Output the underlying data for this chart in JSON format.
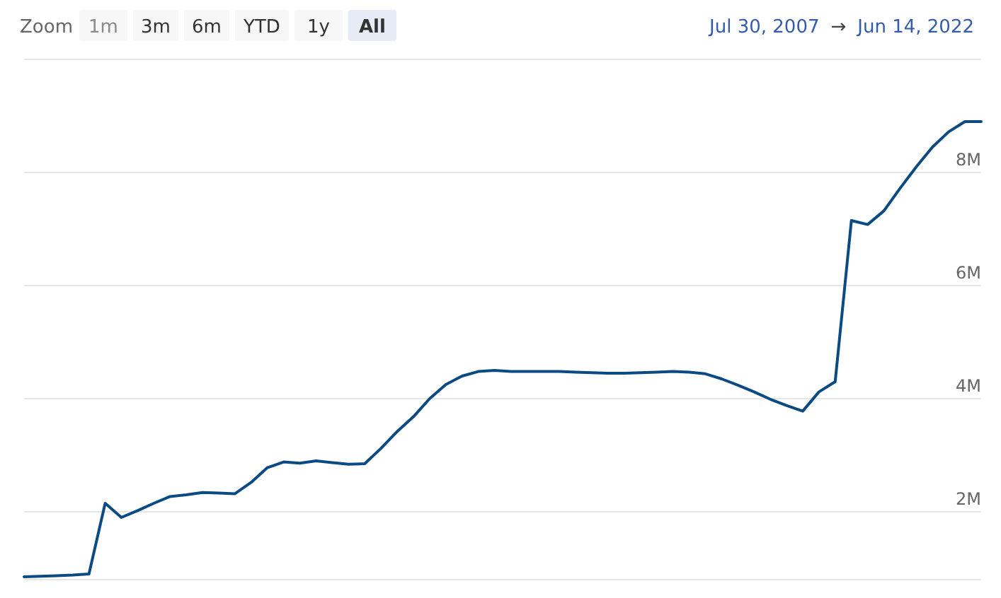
{
  "chart_data": {
    "type": "line",
    "categories": [
      null,
      null,
      null,
      null,
      null,
      null,
      null,
      null,
      null,
      null,
      null,
      null,
      null,
      null,
      null,
      null,
      null,
      null,
      null,
      null,
      null,
      null,
      null,
      null,
      null,
      null,
      null,
      null,
      null,
      null,
      null,
      null,
      null,
      null,
      null,
      null,
      null,
      null,
      null,
      null,
      null,
      null,
      null,
      null,
      null,
      null,
      null,
      null,
      null,
      null,
      null,
      null,
      null,
      null,
      null,
      null,
      null,
      null,
      null,
      null
    ],
    "series": [
      {
        "color": "#0b4a82",
        "values": [
          0.85,
          0.86,
          0.87,
          0.88,
          0.9,
          2.15,
          1.9,
          2.02,
          2.15,
          2.27,
          2.3,
          2.34,
          2.33,
          2.32,
          2.52,
          2.78,
          2.88,
          2.86,
          2.9,
          2.87,
          2.84,
          2.85,
          3.12,
          3.42,
          3.68,
          4.0,
          4.25,
          4.4,
          4.48,
          4.5,
          4.48,
          4.48,
          4.48,
          4.48,
          4.47,
          4.46,
          4.45,
          4.45,
          4.46,
          4.47,
          4.48,
          4.47,
          4.44,
          4.35,
          4.24,
          4.12,
          3.99,
          3.88,
          3.78,
          4.12,
          4.3,
          7.15,
          7.08,
          7.32,
          7.72,
          8.1,
          8.45,
          8.72,
          8.9,
          8.9
        ]
      }
    ],
    "ylim": [
      0.8,
      10
    ],
    "yticks": [
      {
        "value": 2,
        "label": "2M"
      },
      {
        "value": 4,
        "label": "4M"
      },
      {
        "value": 6,
        "label": "6M"
      },
      {
        "value": 8,
        "label": "8M"
      },
      {
        "value": 10,
        "label": null
      }
    ],
    "tick_labels": "y",
    "grid": "y",
    "marker": "none",
    "line_style": "solid",
    "annotations": [
      "Zoom",
      "1m",
      "3m",
      "6m",
      "YTD",
      "1y",
      "All",
      "Jul 30, 2007",
      "→",
      "Jun 14, 2022"
    ]
  }
}
